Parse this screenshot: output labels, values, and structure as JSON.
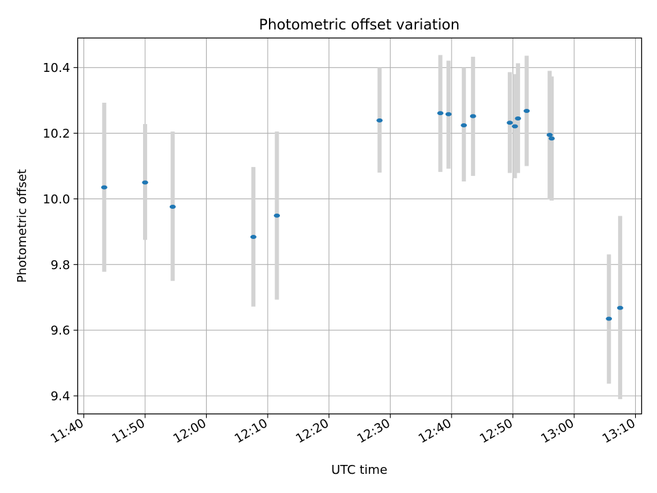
{
  "chart_data": {
    "type": "scatter",
    "title": "Photometric offset variation",
    "xlabel": "UTC time",
    "ylabel": "Photometric offset",
    "x_tick_labels": [
      "11:40",
      "11:50",
      "12:00",
      "12:10",
      "12:20",
      "12:30",
      "12:40",
      "12:50",
      "13:00",
      "13:10"
    ],
    "y_tick_labels": [
      "9.4",
      "9.6",
      "9.8",
      "10.0",
      "10.2",
      "10.4"
    ],
    "y_ticks": [
      9.4,
      9.6,
      9.8,
      10.0,
      10.2,
      10.4
    ],
    "xlim": [
      "11:39:00",
      "13:11:00"
    ],
    "ylim": [
      9.345,
      10.49
    ],
    "grid": true,
    "colors": {
      "points": "#1f77b4",
      "errorbars": "#d3d3d3",
      "grid": "#b0b0b0"
    },
    "series": [
      {
        "points": [
          {
            "x": "11:43:20",
            "y": 10.035,
            "ylow": 9.778,
            "yhigh": 10.293
          },
          {
            "x": "11:50:00",
            "y": 10.05,
            "ylow": 9.875,
            "yhigh": 10.228
          },
          {
            "x": "11:54:30",
            "y": 9.976,
            "ylow": 9.75,
            "yhigh": 10.205
          },
          {
            "x": "12:07:40",
            "y": 9.884,
            "ylow": 9.672,
            "yhigh": 10.097
          },
          {
            "x": "12:11:30",
            "y": 9.949,
            "ylow": 9.693,
            "yhigh": 10.205
          },
          {
            "x": "12:28:15",
            "y": 10.239,
            "ylow": 10.08,
            "yhigh": 10.4
          },
          {
            "x": "12:38:10",
            "y": 10.261,
            "ylow": 10.082,
            "yhigh": 10.438
          },
          {
            "x": "12:39:30",
            "y": 10.258,
            "ylow": 10.092,
            "yhigh": 10.421
          },
          {
            "x": "12:42:00",
            "y": 10.224,
            "ylow": 10.053,
            "yhigh": 10.4
          },
          {
            "x": "12:43:30",
            "y": 10.252,
            "ylow": 10.07,
            "yhigh": 10.433
          },
          {
            "x": "12:49:30",
            "y": 10.232,
            "ylow": 10.079,
            "yhigh": 10.386
          },
          {
            "x": "12:50:20",
            "y": 10.221,
            "ylow": 10.063,
            "yhigh": 10.38
          },
          {
            "x": "12:50:50",
            "y": 10.245,
            "ylow": 10.079,
            "yhigh": 10.413
          },
          {
            "x": "12:52:15",
            "y": 10.268,
            "ylow": 10.1,
            "yhigh": 10.436
          },
          {
            "x": "12:56:00",
            "y": 10.195,
            "ylow": 9.998,
            "yhigh": 10.39
          },
          {
            "x": "12:56:20",
            "y": 10.184,
            "ylow": 9.995,
            "yhigh": 10.373
          },
          {
            "x": "13:05:40",
            "y": 9.635,
            "ylow": 9.437,
            "yhigh": 9.831
          },
          {
            "x": "13:07:30",
            "y": 9.668,
            "ylow": 9.39,
            "yhigh": 9.948
          }
        ]
      }
    ]
  }
}
